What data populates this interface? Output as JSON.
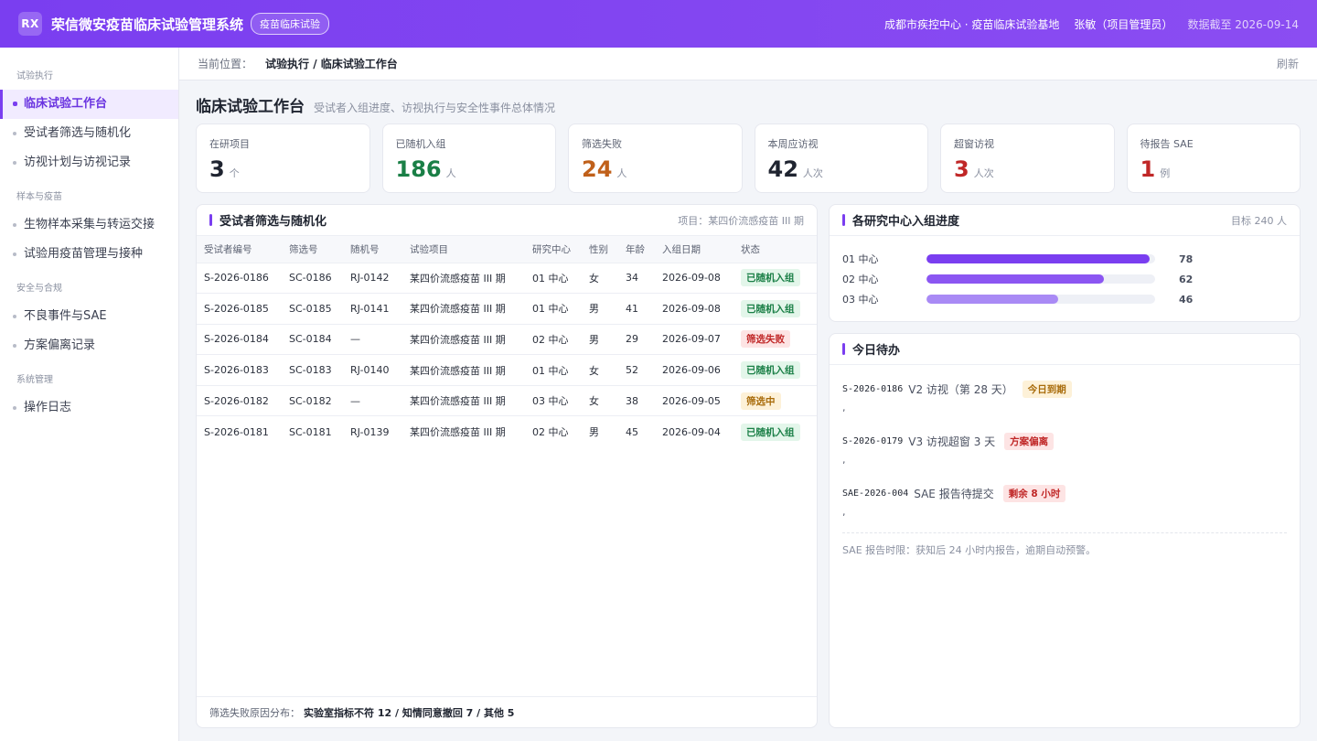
{
  "header": {
    "logo": "RX",
    "title": "荣信微安疫苗临床试验管理系统",
    "tag": "疫苗临床试验",
    "site": "成都市疾控中心 · 疫苗临床试验基地",
    "user": "张敏（项目管理员）",
    "data_date": "数据截至 2026-09-14"
  },
  "sidebar": {
    "groups": [
      {
        "title": "试验执行",
        "items": [
          "临床试验工作台",
          "受试者筛选与随机化",
          "访视计划与访视记录"
        ]
      },
      {
        "title": "样本与疫苗",
        "items": [
          "生物样本采集与转运交接",
          "试验用疫苗管理与接种"
        ]
      },
      {
        "title": "安全与合规",
        "items": [
          "不良事件与SAE",
          "方案偏离记录"
        ]
      },
      {
        "title": "系统管理",
        "items": [
          "操作日志"
        ]
      }
    ]
  },
  "breadcrumb": {
    "prefix": "当前位置：",
    "path": "试验执行 / 临床试验工作台",
    "refresh": "刷新"
  },
  "page": {
    "title": "临床试验工作台",
    "subtitle": "受试者入组进度、访视执行与安全性事件总体情况"
  },
  "stats": [
    {
      "label": "在研项目",
      "value": "3",
      "unit": "个",
      "color": "#1f2430"
    },
    {
      "label": "已随机入组",
      "value": "186",
      "unit": "人",
      "color": "#1a7f46"
    },
    {
      "label": "筛选失败",
      "value": "24",
      "unit": "人",
      "color": "#c0601a"
    },
    {
      "label": "本周应访视",
      "value": "42",
      "unit": "人次",
      "color": "#1f2430"
    },
    {
      "label": "超窗访视",
      "value": "3",
      "unit": "人次",
      "color": "#c02727"
    },
    {
      "label": "待报告 SAE",
      "value": "1",
      "unit": "例",
      "color": "#c02727"
    }
  ],
  "screening": {
    "title": "受试者筛选与随机化",
    "meta": "项目：某四价流感疫苗 III 期",
    "columns": [
      "受试者编号",
      "筛选号",
      "随机号",
      "试验项目",
      "研究中心",
      "性别",
      "年龄",
      "入组日期",
      "状态"
    ],
    "rows": [
      {
        "cells": [
          "S-2026-0186",
          "SC-0186",
          "RJ-0142",
          "某四价流感疫苗 III 期",
          "01 中心",
          "女",
          "34",
          "2026-09-08"
        ],
        "status": "已随机入组",
        "kind": "green"
      },
      {
        "cells": [
          "S-2026-0185",
          "SC-0185",
          "RJ-0141",
          "某四价流感疫苗 III 期",
          "01 中心",
          "男",
          "41",
          "2026-09-08"
        ],
        "status": "已随机入组",
        "kind": "green"
      },
      {
        "cells": [
          "S-2026-0184",
          "SC-0184",
          "—",
          "某四价流感疫苗 III 期",
          "02 中心",
          "男",
          "29",
          "2026-09-07"
        ],
        "status": "筛选失败",
        "kind": "red"
      },
      {
        "cells": [
          "S-2026-0183",
          "SC-0183",
          "RJ-0140",
          "某四价流感疫苗 III 期",
          "01 中心",
          "女",
          "52",
          "2026-09-06"
        ],
        "status": "已随机入组",
        "kind": "green"
      },
      {
        "cells": [
          "S-2026-0182",
          "SC-0182",
          "—",
          "某四价流感疫苗 III 期",
          "03 中心",
          "女",
          "38",
          "2026-09-05"
        ],
        "status": "筛选中",
        "kind": "amber"
      },
      {
        "cells": [
          "S-2026-0181",
          "SC-0181",
          "RJ-0139",
          "某四价流感疫苗 III 期",
          "02 中心",
          "男",
          "45",
          "2026-09-04"
        ],
        "status": "已随机入组",
        "kind": "green"
      }
    ],
    "footer_label": "筛选失败原因分布：",
    "footer_value": "实验室指标不符 12 / 知情同意撤回 7 / 其他 5"
  },
  "progress": {
    "title": "各研究中心入组进度",
    "meta": "目标 240 人",
    "target": 80,
    "centers": [
      {
        "label": "01 中心",
        "value": 78,
        "color": "#7a3ef0"
      },
      {
        "label": "02 中心",
        "value": 62,
        "color": "#8b56f2"
      },
      {
        "label": "03 中心",
        "value": 46,
        "color": "#a98af5"
      }
    ]
  },
  "todo": {
    "title": "今日待办",
    "items": [
      {
        "id": "S-2026-0186",
        "desc": "V2 访视（第 28 天）",
        "badge": "今日到期",
        "kind": "amber",
        "sep": ","
      },
      {
        "id": "S-2026-0179",
        "desc": "V3 访视超窗 3 天",
        "badge": "方案偏离",
        "kind": "red",
        "sep": ","
      },
      {
        "id": "SAE-2026-004",
        "desc": "SAE 报告待提交",
        "badge": "剩余 8 小时",
        "kind": "red",
        "sep": ","
      }
    ],
    "note": "SAE 报告时限：获知后 24 小时内报告，逾期自动预警。"
  }
}
